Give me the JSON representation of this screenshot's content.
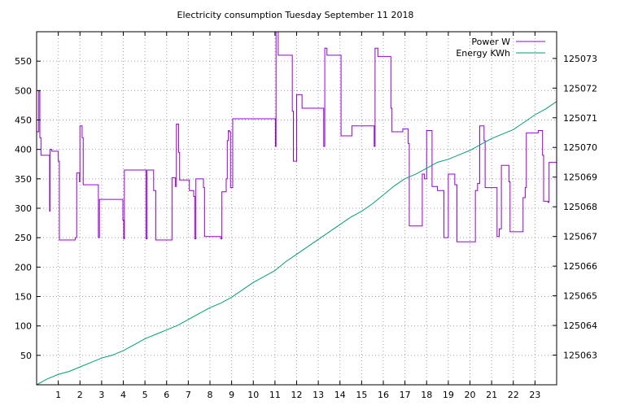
{
  "chart_data": {
    "type": "line",
    "title": "Electricity consumption Tuesday September 11 2018",
    "xlim": [
      0,
      24
    ],
    "x_ticks": [
      1,
      2,
      3,
      4,
      5,
      6,
      7,
      8,
      9,
      10,
      11,
      12,
      13,
      14,
      15,
      16,
      17,
      18,
      19,
      20,
      21,
      22,
      23
    ],
    "y_left": {
      "lim": [
        0,
        600
      ],
      "ticks": [
        50,
        100,
        150,
        200,
        250,
        300,
        350,
        400,
        450,
        500,
        550
      ]
    },
    "y_right": {
      "lim": [
        125062.0,
        125073.9
      ],
      "ticks": [
        125063,
        125064,
        125065,
        125066,
        125067,
        125068,
        125069,
        125070,
        125071,
        125072,
        125073
      ]
    },
    "grid": true,
    "legend_position": "top-right",
    "series": [
      {
        "name": "Power W",
        "axis": "left",
        "color": "#9400d3",
        "step": true,
        "points": [
          [
            0.0,
            430
          ],
          [
            0.1,
            500
          ],
          [
            0.15,
            420
          ],
          [
            0.2,
            390
          ],
          [
            0.55,
            390
          ],
          [
            0.6,
            295
          ],
          [
            0.62,
            400
          ],
          [
            0.7,
            397
          ],
          [
            0.95,
            397
          ],
          [
            1.0,
            380
          ],
          [
            1.05,
            246
          ],
          [
            1.75,
            246
          ],
          [
            1.78,
            250
          ],
          [
            1.85,
            360
          ],
          [
            1.98,
            345
          ],
          [
            2.0,
            440
          ],
          [
            2.1,
            420
          ],
          [
            2.15,
            340
          ],
          [
            2.8,
            340
          ],
          [
            2.85,
            250
          ],
          [
            2.9,
            315
          ],
          [
            3.95,
            315
          ],
          [
            3.98,
            280
          ],
          [
            4.02,
            248
          ],
          [
            4.05,
            365
          ],
          [
            5.0,
            365
          ],
          [
            5.05,
            248
          ],
          [
            5.1,
            365
          ],
          [
            5.35,
            365
          ],
          [
            5.4,
            330
          ],
          [
            5.5,
            246
          ],
          [
            6.2,
            246
          ],
          [
            6.25,
            352
          ],
          [
            6.4,
            337
          ],
          [
            6.45,
            443
          ],
          [
            6.55,
            395
          ],
          [
            6.6,
            348
          ],
          [
            7.0,
            348
          ],
          [
            7.05,
            330
          ],
          [
            7.25,
            320
          ],
          [
            7.3,
            248
          ],
          [
            7.35,
            350
          ],
          [
            7.65,
            350
          ],
          [
            7.7,
            335
          ],
          [
            7.75,
            252
          ],
          [
            8.45,
            252
          ],
          [
            8.5,
            248
          ],
          [
            8.55,
            328
          ],
          [
            8.7,
            328
          ],
          [
            8.75,
            350
          ],
          [
            8.8,
            415
          ],
          [
            8.85,
            432
          ],
          [
            8.9,
            430
          ],
          [
            8.95,
            335
          ],
          [
            9.05,
            452
          ],
          [
            11.0,
            452
          ],
          [
            11.02,
            405
          ],
          [
            11.05,
            600
          ],
          [
            11.15,
            560
          ],
          [
            11.75,
            560
          ],
          [
            11.8,
            465
          ],
          [
            11.85,
            380
          ],
          [
            11.95,
            380
          ],
          [
            12.0,
            493
          ],
          [
            12.2,
            493
          ],
          [
            12.25,
            470
          ],
          [
            13.2,
            470
          ],
          [
            13.25,
            405
          ],
          [
            13.3,
            572
          ],
          [
            13.4,
            560
          ],
          [
            14.0,
            560
          ],
          [
            14.05,
            423
          ],
          [
            14.5,
            423
          ],
          [
            14.55,
            440
          ],
          [
            15.55,
            440
          ],
          [
            15.58,
            405
          ],
          [
            15.62,
            572
          ],
          [
            15.75,
            558
          ],
          [
            16.3,
            558
          ],
          [
            16.35,
            470
          ],
          [
            16.4,
            430
          ],
          [
            16.85,
            430
          ],
          [
            16.9,
            435
          ],
          [
            17.1,
            435
          ],
          [
            17.15,
            410
          ],
          [
            17.2,
            270
          ],
          [
            17.75,
            270
          ],
          [
            17.8,
            358
          ],
          [
            17.9,
            350
          ],
          [
            18.0,
            432
          ],
          [
            18.2,
            432
          ],
          [
            18.25,
            337
          ],
          [
            18.5,
            330
          ],
          [
            18.75,
            330
          ],
          [
            18.8,
            250
          ],
          [
            18.95,
            250
          ],
          [
            19.0,
            358
          ],
          [
            19.25,
            358
          ],
          [
            19.3,
            340
          ],
          [
            19.4,
            243
          ],
          [
            20.2,
            243
          ],
          [
            20.25,
            330
          ],
          [
            20.35,
            342
          ],
          [
            20.45,
            440
          ],
          [
            20.6,
            440
          ],
          [
            20.65,
            415
          ],
          [
            20.7,
            335
          ],
          [
            21.2,
            335
          ],
          [
            21.25,
            252
          ],
          [
            21.35,
            265
          ],
          [
            21.45,
            373
          ],
          [
            21.75,
            373
          ],
          [
            21.8,
            345
          ],
          [
            21.85,
            260
          ],
          [
            22.4,
            260
          ],
          [
            22.45,
            318
          ],
          [
            22.55,
            335
          ],
          [
            22.6,
            428
          ],
          [
            23.1,
            428
          ],
          [
            23.15,
            432
          ],
          [
            23.3,
            432
          ],
          [
            23.35,
            390
          ],
          [
            23.4,
            312
          ],
          [
            23.6,
            310
          ],
          [
            23.65,
            378
          ],
          [
            24.0,
            378
          ]
        ]
      },
      {
        "name": "Energy KWh",
        "axis": "right",
        "color": "#009e73",
        "step": false,
        "points": [
          [
            0,
            125062.0
          ],
          [
            0.5,
            125062.2
          ],
          [
            1,
            125062.35
          ],
          [
            1.5,
            125062.45
          ],
          [
            2,
            125062.6
          ],
          [
            2.5,
            125062.75
          ],
          [
            3,
            125062.9
          ],
          [
            3.5,
            125063.0
          ],
          [
            4,
            125063.15
          ],
          [
            4.5,
            125063.35
          ],
          [
            5,
            125063.55
          ],
          [
            5.5,
            125063.7
          ],
          [
            6,
            125063.85
          ],
          [
            6.5,
            125064.0
          ],
          [
            7,
            125064.2
          ],
          [
            7.5,
            125064.4
          ],
          [
            8,
            125064.6
          ],
          [
            8.5,
            125064.75
          ],
          [
            9,
            125064.95
          ],
          [
            9.5,
            125065.2
          ],
          [
            10,
            125065.45
          ],
          [
            10.5,
            125065.65
          ],
          [
            11,
            125065.85
          ],
          [
            11.5,
            125066.15
          ],
          [
            12,
            125066.4
          ],
          [
            12.5,
            125066.65
          ],
          [
            13,
            125066.9
          ],
          [
            13.5,
            125067.15
          ],
          [
            14,
            125067.4
          ],
          [
            14.5,
            125067.65
          ],
          [
            15,
            125067.85
          ],
          [
            15.5,
            125068.1
          ],
          [
            16,
            125068.4
          ],
          [
            16.5,
            125068.7
          ],
          [
            17,
            125068.95
          ],
          [
            17.5,
            125069.1
          ],
          [
            18,
            125069.3
          ],
          [
            18.5,
            125069.5
          ],
          [
            19,
            125069.6
          ],
          [
            19.5,
            125069.75
          ],
          [
            20,
            125069.9
          ],
          [
            20.5,
            125070.1
          ],
          [
            21,
            125070.3
          ],
          [
            21.5,
            125070.45
          ],
          [
            22,
            125070.6
          ],
          [
            22.5,
            125070.85
          ],
          [
            23,
            125071.1
          ],
          [
            23.5,
            125071.3
          ],
          [
            24,
            125071.55
          ]
        ]
      }
    ]
  }
}
